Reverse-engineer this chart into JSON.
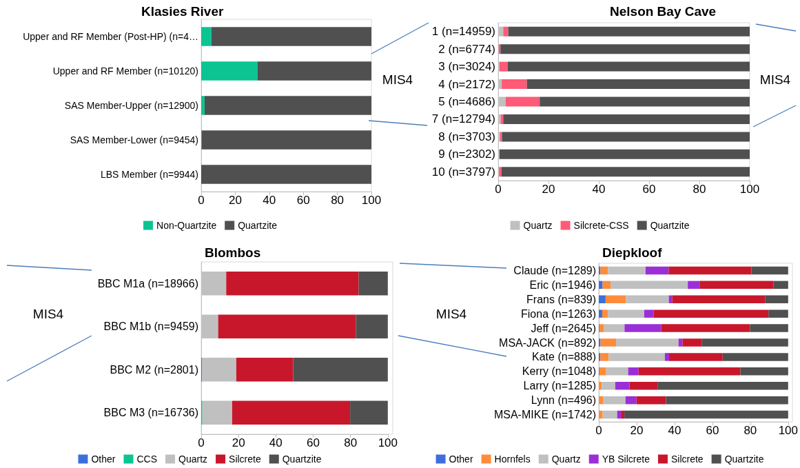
{
  "chart_data": [
    {
      "type": "bar",
      "title": "Klasies River",
      "orientation": "horizontal",
      "stacked": true,
      "categories": [
        "Upper and RF Member (Post-HP) (n=4…",
        "Upper and RF Member (n=10120)",
        "SAS Member-Upper (n=12900)",
        "SAS Member-Lower (n=9454)",
        "LBS Member (n=9944)"
      ],
      "series": [
        {
          "name": "Non-Quartzite",
          "color": "#0bc492",
          "values": [
            6,
            33,
            2,
            0.4,
            0
          ]
        },
        {
          "name": "Quartzite",
          "color": "#505050",
          "values": [
            94,
            67,
            98,
            99.6,
            100
          ]
        }
      ],
      "xlim": [
        0,
        100
      ],
      "xticks": [
        0,
        20,
        40,
        60,
        80,
        100
      ],
      "grid": false,
      "legend": "bottom",
      "annotations": [
        "MIS4"
      ]
    },
    {
      "type": "bar",
      "title": "Nelson Bay Cave",
      "orientation": "horizontal",
      "stacked": true,
      "categories": [
        "1 (n=14959)",
        "2 (n=6774)",
        "3 (n=3024)",
        "4 (n=2172)",
        "5 (n=4686)",
        "7 (n=12794)",
        "8 (n=3703)",
        "9 (n=2302)",
        "10 (n=3797)"
      ],
      "series": [
        {
          "name": "Quartz",
          "color": "#c0c0c0",
          "values": [
            2,
            0.2,
            0.5,
            1.4,
            3,
            1,
            0.8,
            0.5,
            0.3
          ]
        },
        {
          "name": "Silcrete-CSS",
          "color": "#ff5a76",
          "values": [
            2,
            0.7,
            3.3,
            10,
            13.5,
            1,
            0.7,
            0,
            1
          ]
        },
        {
          "name": "Quartzite",
          "color": "#505050",
          "values": [
            96,
            99.1,
            96.2,
            88.6,
            83.5,
            98,
            98.5,
            99.5,
            98.7
          ]
        }
      ],
      "xlim": [
        0,
        100
      ],
      "xticks": [
        0,
        20,
        40,
        60,
        80,
        100
      ],
      "grid": false,
      "legend": "bottom",
      "annotations": [
        "MIS4"
      ]
    },
    {
      "type": "bar",
      "title": "Blombos",
      "orientation": "horizontal",
      "stacked": true,
      "categories": [
        "BBC M1a (n=18966)",
        "BBC M1b (n=9459)",
        "BBC M2 (n=2801)",
        "BBC M3 (n=16736)"
      ],
      "series": [
        {
          "name": "Other",
          "color": "#3d6fdb",
          "values": [
            0,
            0,
            0.5,
            0.3
          ]
        },
        {
          "name": "CCS",
          "color": "#0bc492",
          "values": [
            0,
            0,
            0,
            0.3
          ]
        },
        {
          "name": "Quartz",
          "color": "#c0c0c0",
          "values": [
            13.4,
            9.1,
            18.3,
            16
          ]
        },
        {
          "name": "Silcrete",
          "color": "#c8172b",
          "values": [
            71,
            73.8,
            30.5,
            63.2
          ]
        },
        {
          "name": "Quartzite",
          "color": "#505050",
          "values": [
            15.6,
            17.1,
            50.7,
            20.2
          ]
        }
      ],
      "xlim": [
        0,
        100
      ],
      "xticks": [
        0,
        20,
        40,
        60,
        80,
        100
      ],
      "grid": false,
      "legend": "bottom",
      "annotations": [
        "MIS4"
      ]
    },
    {
      "type": "bar",
      "title": "Diepkloof",
      "orientation": "horizontal",
      "stacked": true,
      "categories": [
        "Claude (n=1289)",
        "Eric (n=1946)",
        "Frans (n=839)",
        "Fiona (n=1263)",
        "Jeff (n=2645)",
        "MSA-JACK (n=892)",
        "Kate (n=888)",
        "Kerry (n=1048)",
        "Larry (n=1285)",
        "Lynn (n=496)",
        "MSA-MIKE (n=1742)"
      ],
      "series": [
        {
          "name": "Other",
          "color": "#3d6fdb",
          "values": [
            0.8,
            2,
            3.6,
            1.8,
            0.3,
            0.9,
            0.8,
            0.3,
            0,
            0,
            0
          ]
        },
        {
          "name": "Hornfels",
          "color": "#ff8c3a",
          "values": [
            4.1,
            4.2,
            10.8,
            3,
            2.5,
            8.2,
            4.4,
            3.6,
            1.6,
            2.2,
            2
          ]
        },
        {
          "name": "Quartz",
          "color": "#c0c0c0",
          "values": [
            19.8,
            40.8,
            22.6,
            19.2,
            10.8,
            33,
            29.7,
            11.6,
            7.1,
            11.9,
            7.7
          ]
        },
        {
          "name": "YB Silcrete",
          "color": "#9a2fd8",
          "values": [
            12.2,
            6.2,
            1.8,
            5,
            19.3,
            2.1,
            2.2,
            5.5,
            7.5,
            5.8,
            2
          ]
        },
        {
          "name": "Silcrete",
          "color": "#c8172b",
          "values": [
            43.7,
            39.1,
            49,
            60.6,
            47,
            10.3,
            28.3,
            53.8,
            14.8,
            15.6,
            1.8
          ]
        },
        {
          "name": "Quartzite",
          "color": "#505050",
          "values": [
            19.4,
            7.7,
            12.2,
            10.4,
            20.1,
            45.5,
            34.6,
            25.2,
            69,
            64.5,
            86.5
          ]
        }
      ],
      "xlim": [
        0,
        100
      ],
      "xticks": [
        0,
        20,
        40,
        60,
        80,
        100
      ],
      "grid": false,
      "legend": "bottom",
      "annotations": [
        "MIS4"
      ]
    }
  ]
}
